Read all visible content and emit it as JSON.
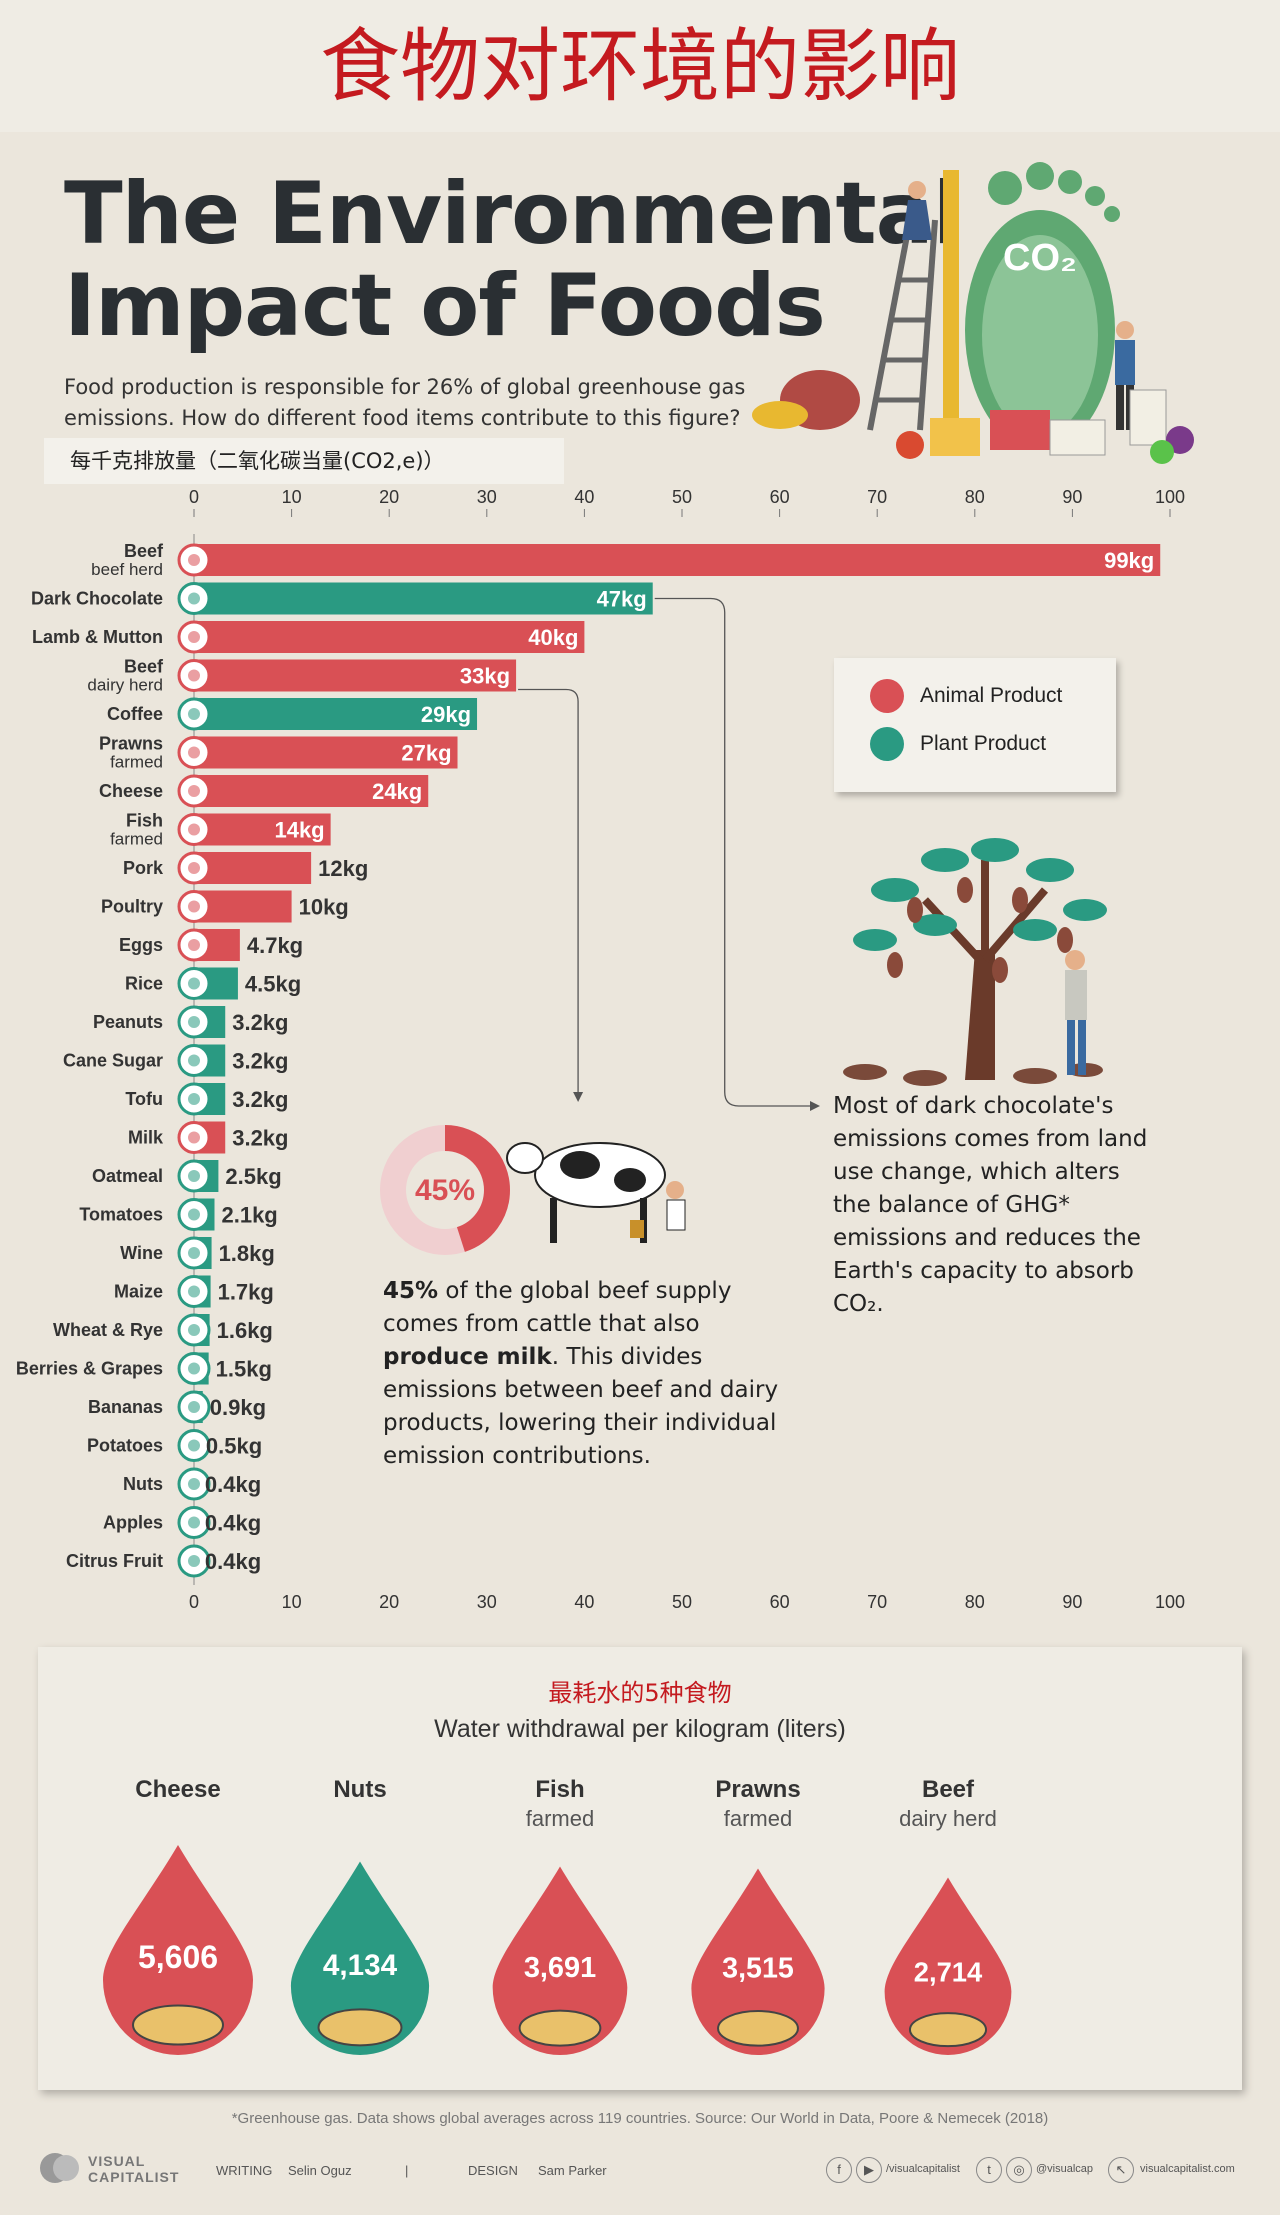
{
  "header": {
    "cn_title": "食物对环境的影响",
    "title_line1": "The Environmental",
    "title_line2": "Impact of Foods",
    "subtitle": "Food production is responsible for 26% of global greenhouse gas emissions. How do different food items contribute to this figure?",
    "unit_label": "每千克排放量（二氧化碳当量(CO2,e)）",
    "illustration_label": "CO₂"
  },
  "colors": {
    "animal": "#d95055",
    "plant": "#2a9a82"
  },
  "legend": {
    "animal": "Animal Product",
    "plant": "Plant Product"
  },
  "chart_data": {
    "type": "bar",
    "orientation": "horizontal",
    "xlim": [
      0,
      100
    ],
    "ticks": [
      0,
      10,
      20,
      30,
      40,
      50,
      60,
      70,
      80,
      90,
      100
    ],
    "unit_suffix": "kg",
    "grid": false,
    "legend_position": "right",
    "bars": [
      {
        "name": "Beef",
        "sub": "beef herd",
        "value": 99,
        "label": "99kg",
        "type": "animal"
      },
      {
        "name": "Dark Chocolate",
        "sub": "",
        "value": 47,
        "label": "47kg",
        "type": "plant"
      },
      {
        "name": "Lamb & Mutton",
        "sub": "",
        "value": 40,
        "label": "40kg",
        "type": "animal"
      },
      {
        "name": "Beef",
        "sub": "dairy herd",
        "value": 33,
        "label": "33kg",
        "type": "animal"
      },
      {
        "name": "Coffee",
        "sub": "",
        "value": 29,
        "label": "29kg",
        "type": "plant"
      },
      {
        "name": "Prawns",
        "sub": "farmed",
        "value": 27,
        "label": "27kg",
        "type": "animal"
      },
      {
        "name": "Cheese",
        "sub": "",
        "value": 24,
        "label": "24kg",
        "type": "animal"
      },
      {
        "name": "Fish",
        "sub": "farmed",
        "value": 14,
        "label": "14kg",
        "type": "animal"
      },
      {
        "name": "Pork",
        "sub": "",
        "value": 12,
        "label": "12kg",
        "type": "animal"
      },
      {
        "name": "Poultry",
        "sub": "",
        "value": 10,
        "label": "10kg",
        "type": "animal"
      },
      {
        "name": "Eggs",
        "sub": "",
        "value": 4.7,
        "label": "4.7kg",
        "type": "animal"
      },
      {
        "name": "Rice",
        "sub": "",
        "value": 4.5,
        "label": "4.5kg",
        "type": "plant"
      },
      {
        "name": "Peanuts",
        "sub": "",
        "value": 3.2,
        "label": "3.2kg",
        "type": "plant"
      },
      {
        "name": "Cane Sugar",
        "sub": "",
        "value": 3.2,
        "label": "3.2kg",
        "type": "plant"
      },
      {
        "name": "Tofu",
        "sub": "",
        "value": 3.2,
        "label": "3.2kg",
        "type": "plant"
      },
      {
        "name": "Milk",
        "sub": "",
        "value": 3.2,
        "label": "3.2kg",
        "type": "animal"
      },
      {
        "name": "Oatmeal",
        "sub": "",
        "value": 2.5,
        "label": "2.5kg",
        "type": "plant"
      },
      {
        "name": "Tomatoes",
        "sub": "",
        "value": 2.1,
        "label": "2.1kg",
        "type": "plant"
      },
      {
        "name": "Wine",
        "sub": "",
        "value": 1.8,
        "label": "1.8kg",
        "type": "plant"
      },
      {
        "name": "Maize",
        "sub": "",
        "value": 1.7,
        "label": "1.7kg",
        "type": "plant"
      },
      {
        "name": "Wheat & Rye",
        "sub": "",
        "value": 1.6,
        "label": "1.6kg",
        "type": "plant"
      },
      {
        "name": "Berries & Grapes",
        "sub": "",
        "value": 1.5,
        "label": "1.5kg",
        "type": "plant"
      },
      {
        "name": "Bananas",
        "sub": "",
        "value": 0.9,
        "label": "0.9kg",
        "type": "plant"
      },
      {
        "name": "Potatoes",
        "sub": "",
        "value": 0.5,
        "label": "0.5kg",
        "type": "plant"
      },
      {
        "name": "Nuts",
        "sub": "",
        "value": 0.4,
        "label": "0.4kg",
        "type": "plant"
      },
      {
        "name": "Apples",
        "sub": "",
        "value": 0.4,
        "label": "0.4kg",
        "type": "plant"
      },
      {
        "name": "Citrus Fruit",
        "sub": "",
        "value": 0.4,
        "label": "0.4kg",
        "type": "plant"
      }
    ]
  },
  "chocolate_note": "Most of dark chocolate's emissions comes from land use change, which alters the balance of GHG* emissions and reduces the Earth's capacity to absorb CO₂.",
  "beef_note": {
    "percent": "45%",
    "percent_value": 45,
    "p1": "45%",
    "p2": " of the global beef supply comes from cattle that also ",
    "p3": "produce milk",
    "p4": ". This divides emissions between beef and dairy products, lowering their individual emission contributions."
  },
  "water": {
    "cn_title": "最耗水的5种食物",
    "title": "Water withdrawal per kilogram (liters)",
    "items": [
      {
        "name": "Cheese",
        "sub": "",
        "value": 5606,
        "label": "5,606",
        "color": "#d95055"
      },
      {
        "name": "Nuts",
        "sub": "",
        "value": 4134,
        "label": "4,134",
        "color": "#2a9a82"
      },
      {
        "name": "Fish",
        "sub": "farmed",
        "value": 3691,
        "label": "3,691",
        "color": "#d95055"
      },
      {
        "name": "Prawns",
        "sub": "farmed",
        "value": 3515,
        "label": "3,515",
        "color": "#d95055"
      },
      {
        "name": "Beef",
        "sub": "dairy herd",
        "value": 2714,
        "label": "2,714",
        "color": "#d95055"
      }
    ]
  },
  "footnote": "*Greenhouse gas. Data shows global averages across 119 countries. Source: Our World in Data, Poore & Nemecek (2018)",
  "footer": {
    "brand1": "VISUAL",
    "brand2": "CAPITALIST",
    "writing_label": "WRITING",
    "writer": "Selin Oguz",
    "sep": "|",
    "design_label": "DESIGN",
    "designer": "Sam Parker",
    "social1": "/visualcapitalist",
    "social2": "@visualcap",
    "social3": "visualcapitalist.com"
  }
}
